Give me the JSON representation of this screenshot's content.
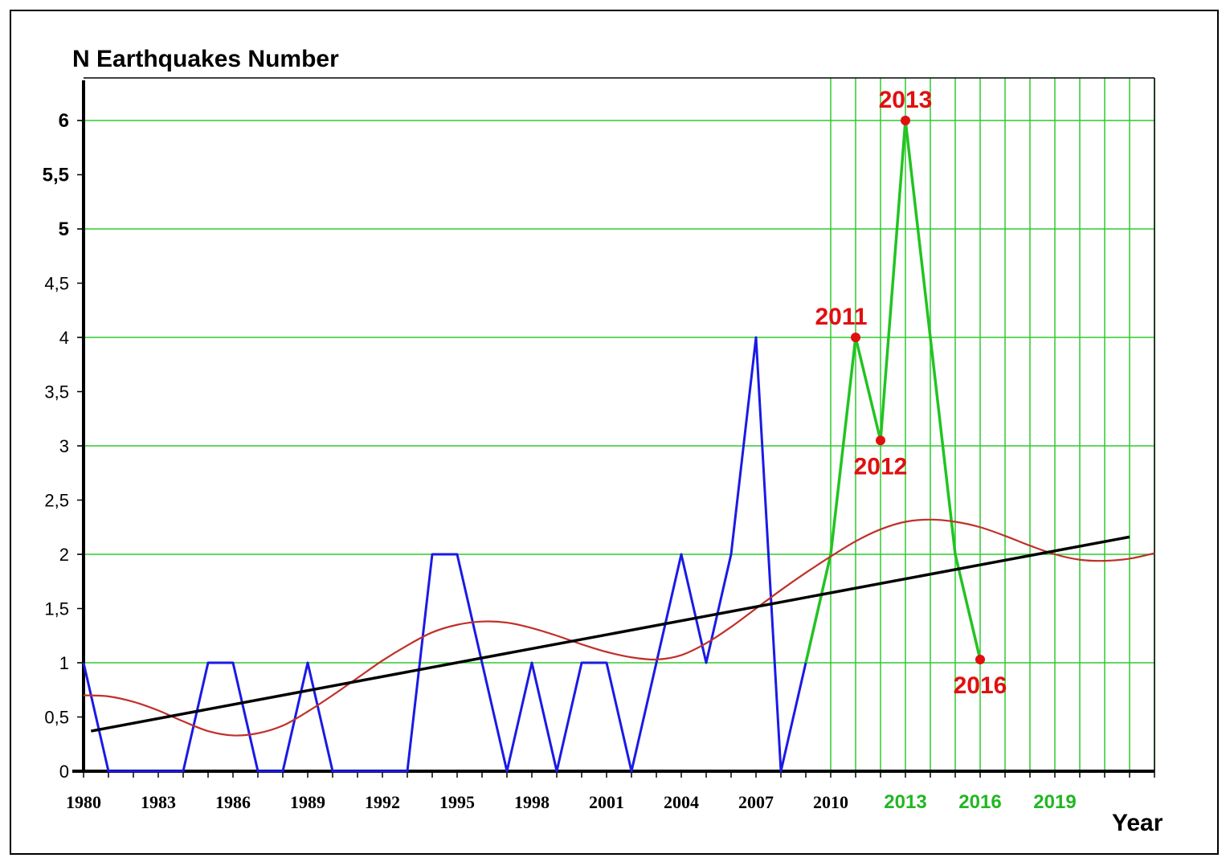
{
  "chart_data": {
    "type": "line",
    "title": "N  Earthquakes Number",
    "xlabel": "Year",
    "ylabel": "",
    "xlim": [
      1980,
      2023
    ],
    "ylim": [
      0,
      6.4
    ],
    "x_ticks": [
      {
        "value": 1980,
        "label": "1980",
        "color": "black"
      },
      {
        "value": 1983,
        "label": "1983",
        "color": "black"
      },
      {
        "value": 1986,
        "label": "1986",
        "color": "black"
      },
      {
        "value": 1989,
        "label": "1989",
        "color": "black"
      },
      {
        "value": 1992,
        "label": "1992",
        "color": "black"
      },
      {
        "value": 1995,
        "label": "1995",
        "color": "black"
      },
      {
        "value": 1998,
        "label": "1998",
        "color": "black"
      },
      {
        "value": 2001,
        "label": "2001",
        "color": "black"
      },
      {
        "value": 2004,
        "label": "2004",
        "color": "black"
      },
      {
        "value": 2007,
        "label": "2007",
        "color": "black"
      },
      {
        "value": 2010,
        "label": "2010",
        "color": "black"
      },
      {
        "value": 2013,
        "label": "2013",
        "color": "green"
      },
      {
        "value": 2016,
        "label": "2016",
        "color": "green"
      },
      {
        "value": 2019,
        "label": "2019",
        "color": "green"
      }
    ],
    "y_ticks": [
      {
        "value": 0,
        "label": "0",
        "bold": false
      },
      {
        "value": 0.5,
        "label": "0,5",
        "bold": false
      },
      {
        "value": 1,
        "label": "1",
        "bold": false
      },
      {
        "value": 1.5,
        "label": "1,5",
        "bold": false
      },
      {
        "value": 2,
        "label": "2",
        "bold": false
      },
      {
        "value": 2.5,
        "label": "2,5",
        "bold": false
      },
      {
        "value": 3,
        "label": "3",
        "bold": false
      },
      {
        "value": 3.5,
        "label": "3,5",
        "bold": false
      },
      {
        "value": 4,
        "label": "4",
        "bold": false
      },
      {
        "value": 4.5,
        "label": "4,5",
        "bold": false
      },
      {
        "value": 5,
        "label": "5",
        "bold": true
      },
      {
        "value": 5.5,
        "label": "5,5",
        "bold": true
      },
      {
        "value": 6,
        "label": "6",
        "bold": true
      }
    ],
    "grid": {
      "horizontal_values": [
        1,
        2,
        3,
        4,
        5,
        6
      ],
      "vertical_values": [
        2010,
        2011,
        2012,
        2013,
        2014,
        2015,
        2016,
        2017,
        2018,
        2019,
        2020,
        2021,
        2022,
        2023
      ],
      "color": "#2ecc2e"
    },
    "series": [
      {
        "color": "#1a1ae6",
        "style": "observed",
        "x": [
          1980,
          1981,
          1982,
          1983,
          1984,
          1985,
          1986,
          1987,
          1988,
          1989,
          1990,
          1991,
          1992,
          1993,
          1994,
          1995,
          1996,
          1997,
          1998,
          1999,
          2000,
          2001,
          2002,
          2003,
          2004,
          2005,
          2006,
          2007,
          2008,
          2009
        ],
        "y": [
          1,
          0,
          0,
          0,
          0,
          1,
          1,
          0,
          0,
          1,
          0,
          0,
          0,
          0,
          2,
          2,
          1,
          0,
          1,
          0,
          1,
          1,
          0,
          1,
          2,
          1,
          2,
          4,
          0,
          1
        ]
      },
      {
        "color": "#22c322",
        "style": "forecast",
        "x": [
          2009,
          2010,
          2011,
          2012,
          2013,
          2014,
          2015,
          2016
        ],
        "y": [
          1,
          2,
          4,
          3.05,
          6,
          4,
          2,
          1.03
        ]
      },
      {
        "color": "#c0302a",
        "style": "smoothed",
        "x": [
          1980,
          1981,
          1982,
          1983,
          1984,
          1985,
          1986,
          1987,
          1988,
          1989,
          1990,
          1991,
          1992,
          1993,
          1994,
          1995,
          1996,
          1997,
          1998,
          1999,
          2000,
          2001,
          2002,
          2003,
          2004,
          2005,
          2006,
          2007,
          2008,
          2009,
          2010,
          2011,
          2012,
          2013,
          2014,
          2015,
          2016,
          2017,
          2018,
          2019,
          2020,
          2021,
          2022,
          2023
        ],
        "y": [
          0.7,
          0.69,
          0.64,
          0.56,
          0.46,
          0.37,
          0.33,
          0.35,
          0.42,
          0.55,
          0.7,
          0.86,
          1.02,
          1.16,
          1.28,
          1.35,
          1.38,
          1.37,
          1.32,
          1.25,
          1.17,
          1.1,
          1.05,
          1.03,
          1.07,
          1.18,
          1.33,
          1.5,
          1.67,
          1.83,
          1.98,
          2.12,
          2.23,
          2.3,
          2.32,
          2.3,
          2.25,
          2.17,
          2.08,
          2.0,
          1.95,
          1.94,
          1.96,
          2.01
        ]
      },
      {
        "color": "#000000",
        "style": "trend",
        "x": [
          1980.3,
          2022
        ],
        "y": [
          0.37,
          2.16
        ]
      }
    ],
    "annotations": [
      {
        "label": "2011",
        "x": 2011,
        "y": 4,
        "position": "above"
      },
      {
        "label": "2012",
        "x": 2012,
        "y": 3.05,
        "position": "below"
      },
      {
        "label": "2013",
        "x": 2013,
        "y": 6,
        "position": "above"
      },
      {
        "label": "2016",
        "x": 2016,
        "y": 1.03,
        "position": "below"
      }
    ],
    "annotation_color": "#e01010"
  }
}
